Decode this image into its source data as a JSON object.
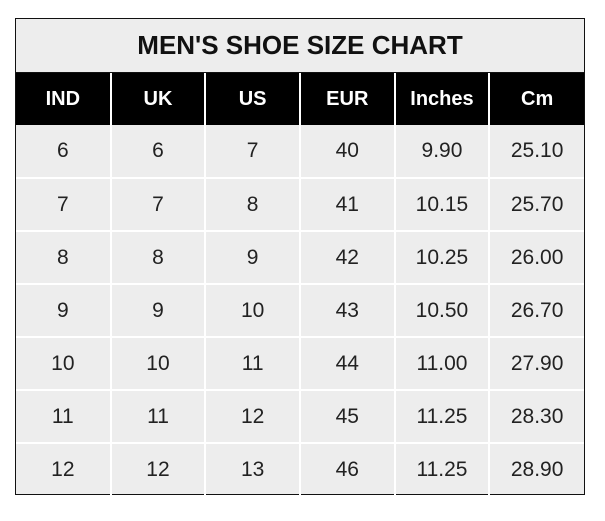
{
  "chart_data": {
    "type": "table",
    "title": "MEN'S SHOE SIZE CHART",
    "columns": [
      "IND",
      "UK",
      "US",
      "EUR",
      "Inches",
      "Cm"
    ],
    "rows": [
      [
        "6",
        "6",
        "7",
        "40",
        "9.90",
        "25.10"
      ],
      [
        "7",
        "7",
        "8",
        "41",
        "10.15",
        "25.70"
      ],
      [
        "8",
        "8",
        "9",
        "42",
        "10.25",
        "26.00"
      ],
      [
        "9",
        "9",
        "10",
        "43",
        "10.50",
        "26.70"
      ],
      [
        "10",
        "10",
        "11",
        "44",
        "11.00",
        "27.90"
      ],
      [
        "11",
        "11",
        "12",
        "45",
        "11.25",
        "28.30"
      ],
      [
        "12",
        "12",
        "13",
        "46",
        "11.25",
        "28.90"
      ]
    ],
    "colors": {
      "header_bg": "#000000",
      "header_text": "#ffffff",
      "cell_bg": "#ededed",
      "grid": "#ffffff"
    }
  }
}
